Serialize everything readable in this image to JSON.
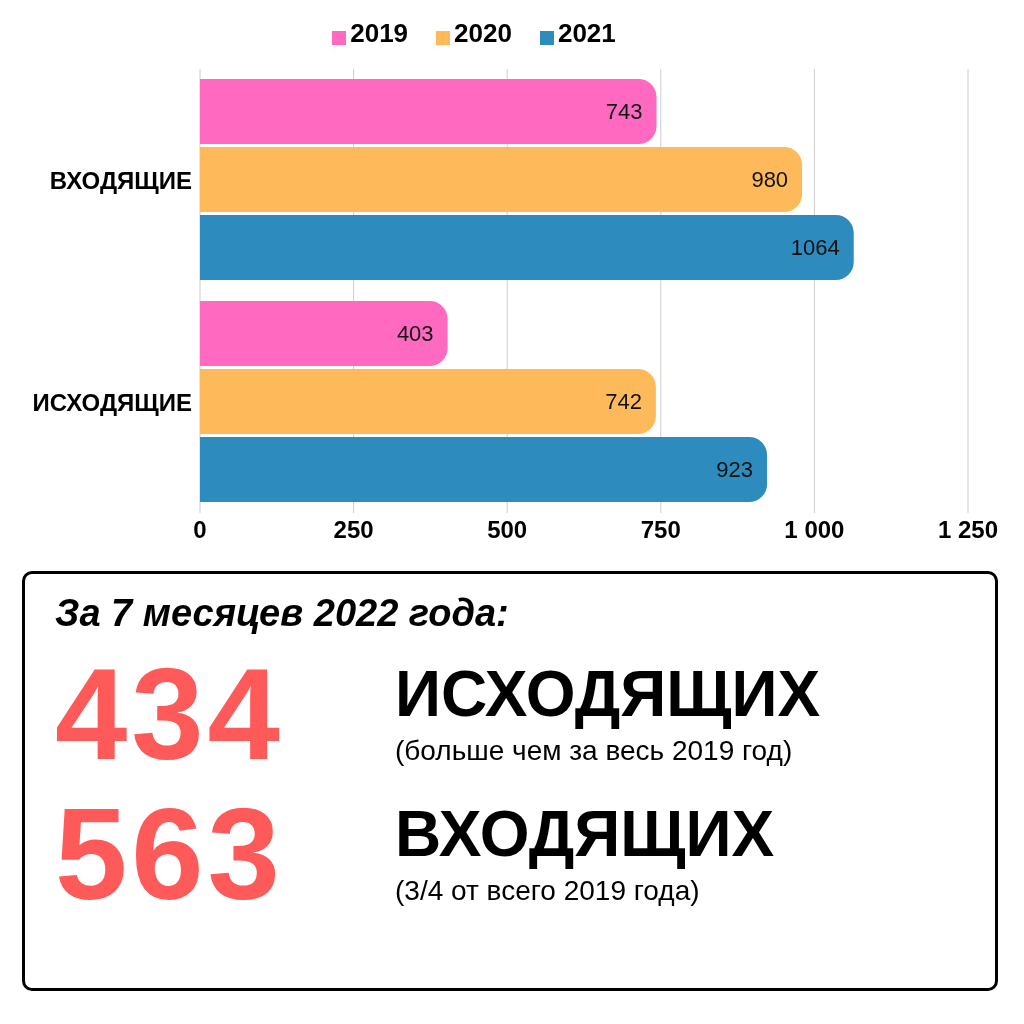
{
  "chart_data": [
    {
      "type": "bar",
      "orientation": "horizontal",
      "categories": [
        "ВХОДЯЩИЕ",
        "ИСХОДЯЩИЕ"
      ],
      "series": [
        {
          "name": "2019",
          "color": "#ff69c0",
          "values": [
            743,
            403
          ]
        },
        {
          "name": "2020",
          "color": "#fdb95a",
          "values": [
            980,
            742
          ]
        },
        {
          "name": "2021",
          "color": "#2e8bbd",
          "values": [
            1064,
            923
          ]
        }
      ],
      "xlim": [
        0,
        1250
      ],
      "xticks": [
        0,
        250,
        500,
        750,
        {
          "value": 1000,
          "label": "1 000"
        },
        {
          "value": 1250,
          "label": "1 250"
        }
      ],
      "grid": "x",
      "legend": "top",
      "data_labels": true
    },
    {
      "type": "other",
      "title": "За 7 месяцев 2022 года:",
      "annotations": [
        "434",
        "ИСХОДЯЩИХ",
        "(больше чем за весь 2019 год)",
        "563",
        "ВХОДЯЩИХ",
        "(3/4 от всего 2019 года)"
      ]
    }
  ]
}
